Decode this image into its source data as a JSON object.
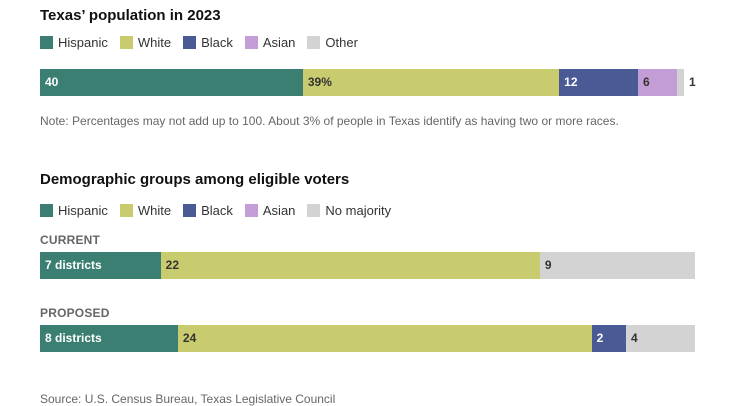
{
  "colors": {
    "hispanic": "#3a7f72",
    "white": "#c8cc6f",
    "black": "#4a5a94",
    "asian": "#c39dd6",
    "other": "#d3d3d3"
  },
  "chart_data": [
    {
      "type": "bar",
      "stacked": true,
      "orientation": "horizontal",
      "title": "Texas’ population in 2023",
      "legend": [
        "Hispanic",
        "White",
        "Black",
        "Asian",
        "Other"
      ],
      "series": [
        {
          "name": "Hispanic",
          "values": [
            40
          ],
          "label": "40"
        },
        {
          "name": "White",
          "values": [
            39
          ],
          "label": "39%"
        },
        {
          "name": "Black",
          "values": [
            12
          ],
          "label": "12"
        },
        {
          "name": "Asian",
          "values": [
            6
          ],
          "label": "6"
        },
        {
          "name": "Other",
          "values": [
            1
          ],
          "label": "1"
        }
      ],
      "note": "Note: Percentages may not add up to 100. About 3% of people in Texas identify as having two or more races."
    },
    {
      "type": "bar",
      "stacked": true,
      "orientation": "horizontal",
      "title": "Demographic groups among eligible voters",
      "legend": [
        "Hispanic",
        "White",
        "Black",
        "Asian",
        "No majority"
      ],
      "categories": [
        "CURRENT",
        "PROPOSED"
      ],
      "series": [
        {
          "name": "Hispanic",
          "values": [
            7,
            8
          ],
          "labels": [
            "7 districts",
            "8 districts"
          ]
        },
        {
          "name": "White",
          "values": [
            22,
            24
          ],
          "labels": [
            "22",
            "24"
          ]
        },
        {
          "name": "Black",
          "values": [
            0,
            2
          ],
          "labels": [
            "",
            "2"
          ]
        },
        {
          "name": "Asian",
          "values": [
            0,
            0
          ],
          "labels": [
            "",
            ""
          ]
        },
        {
          "name": "No majority",
          "values": [
            9,
            4
          ],
          "labels": [
            "9",
            "4"
          ]
        }
      ]
    }
  ],
  "source": "Source: U.S. Census Bureau, Texas Legislative Council"
}
